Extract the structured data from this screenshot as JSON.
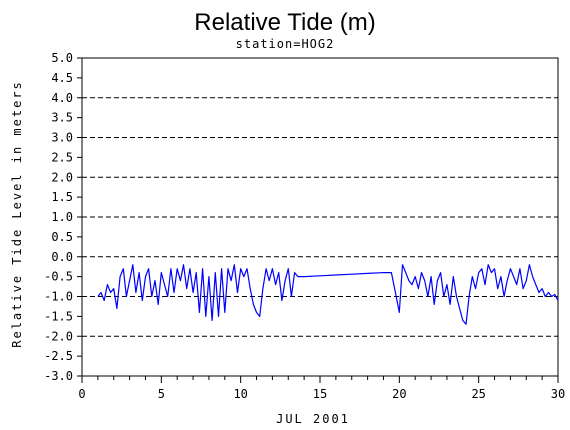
{
  "chart_data": {
    "type": "line",
    "title": "Relative Tide (m)",
    "subtitle": "station=HOG2",
    "xlabel": "JUL 2001",
    "ylabel": "Relative Tide Level in meters",
    "xlim": [
      0,
      30
    ],
    "ylim": [
      -3.0,
      5.0
    ],
    "x_major_ticks": [
      0,
      5,
      10,
      15,
      20,
      25,
      30
    ],
    "x_minor_step": 1,
    "y_ticks": [
      5.0,
      4.5,
      4.0,
      3.5,
      3.0,
      2.5,
      2.0,
      1.5,
      1.0,
      0.5,
      0.0,
      -0.5,
      -1.0,
      -1.5,
      -2.0,
      -2.5,
      -3.0
    ],
    "y_tick_labels": [
      "5.0",
      "4.5",
      "4.0",
      "3.5",
      "3.0",
      "2.5",
      "2.0",
      "1.5",
      "1.0",
      "0.5",
      "0.0",
      "-0.5",
      "-1.0",
      "-1.5",
      "-2.0",
      "-2.5",
      "-3.0"
    ],
    "gridlines_y": [
      5.0,
      4.0,
      3.0,
      2.0,
      1.0,
      0.0,
      -1.0,
      -2.0,
      -3.0
    ],
    "grid_style": "dashed horizontal",
    "series": [
      {
        "color": "#0000ff",
        "x": [
          1.0,
          1.2,
          1.4,
          1.6,
          1.8,
          2.0,
          2.2,
          2.4,
          2.6,
          2.8,
          3.0,
          3.2,
          3.4,
          3.6,
          3.8,
          4.0,
          4.2,
          4.4,
          4.6,
          4.8,
          5.0,
          5.2,
          5.4,
          5.6,
          5.8,
          6.0,
          6.2,
          6.4,
          6.6,
          6.8,
          7.0,
          7.2,
          7.4,
          7.6,
          7.8,
          8.0,
          8.2,
          8.4,
          8.6,
          8.8,
          9.0,
          9.2,
          9.4,
          9.6,
          9.8,
          10.0,
          10.2,
          10.4,
          10.6,
          10.8,
          11.0,
          11.2,
          11.4,
          11.6,
          11.8,
          12.0,
          12.2,
          12.4,
          12.6,
          12.8,
          13.0,
          13.2,
          13.4,
          13.6,
          14.0,
          15.0,
          16.0,
          17.0,
          18.0,
          19.0,
          19.5,
          19.8,
          20.0,
          20.2,
          20.4,
          20.6,
          20.8,
          21.0,
          21.2,
          21.4,
          21.6,
          21.8,
          22.0,
          22.2,
          22.4,
          22.6,
          22.8,
          23.0,
          23.2,
          23.4,
          23.6,
          23.8,
          24.0,
          24.2,
          24.4,
          24.6,
          24.8,
          25.0,
          25.2,
          25.4,
          25.6,
          25.8,
          26.0,
          26.2,
          26.4,
          26.6,
          26.8,
          27.0,
          27.2,
          27.4,
          27.6,
          27.8,
          28.0,
          28.2,
          28.4,
          28.6,
          28.8,
          29.0,
          29.2,
          29.4,
          29.6,
          29.8,
          30.0
        ],
        "y": [
          -1.0,
          -0.9,
          -1.1,
          -0.7,
          -0.9,
          -0.8,
          -1.3,
          -0.5,
          -0.3,
          -1.0,
          -0.6,
          -0.2,
          -0.9,
          -0.4,
          -1.1,
          -0.5,
          -0.3,
          -1.0,
          -0.6,
          -1.2,
          -0.4,
          -0.7,
          -1.0,
          -0.3,
          -0.9,
          -0.3,
          -0.6,
          -0.2,
          -0.8,
          -0.3,
          -0.9,
          -0.4,
          -1.4,
          -0.3,
          -1.5,
          -0.5,
          -1.6,
          -0.4,
          -1.5,
          -0.3,
          -1.4,
          -0.3,
          -0.6,
          -0.2,
          -0.9,
          -0.3,
          -0.5,
          -0.3,
          -0.8,
          -1.2,
          -1.4,
          -1.5,
          -0.8,
          -0.3,
          -0.6,
          -0.3,
          -0.7,
          -0.4,
          -1.1,
          -0.6,
          -0.3,
          -1.0,
          -0.4,
          -0.5,
          -0.5,
          -0.48,
          -0.46,
          -0.44,
          -0.42,
          -0.4,
          -0.4,
          -1.0,
          -1.4,
          -0.2,
          -0.4,
          -0.6,
          -0.7,
          -0.5,
          -0.8,
          -0.4,
          -0.6,
          -1.0,
          -0.5,
          -1.2,
          -0.6,
          -0.4,
          -1.0,
          -0.7,
          -1.2,
          -0.5,
          -1.0,
          -1.3,
          -1.6,
          -1.7,
          -1.0,
          -0.5,
          -0.8,
          -0.4,
          -0.3,
          -0.7,
          -0.2,
          -0.4,
          -0.3,
          -0.8,
          -0.5,
          -1.0,
          -0.6,
          -0.3,
          -0.5,
          -0.7,
          -0.3,
          -0.8,
          -0.6,
          -0.2,
          -0.5,
          -0.7,
          -0.9,
          -0.8,
          -1.0,
          -0.9,
          -1.0,
          -0.95,
          -1.1
        ]
      }
    ]
  }
}
